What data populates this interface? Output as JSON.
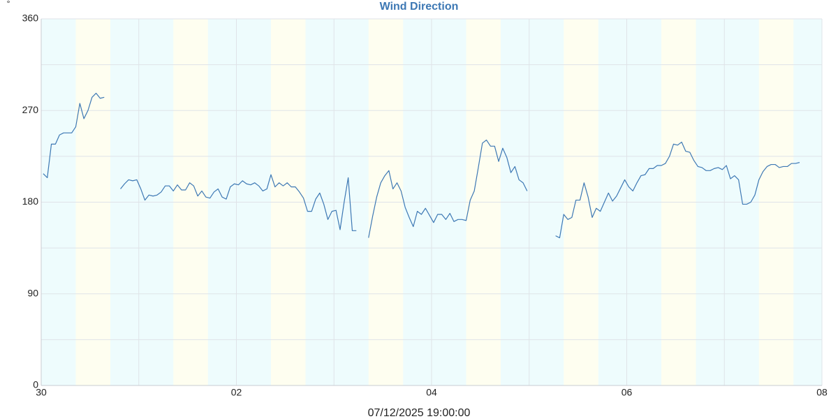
{
  "chart_data": {
    "type": "line",
    "title": "Wind Direction",
    "y_unit": "°",
    "x_label": "07/12/2025 19:00:00",
    "color": "#3d78b4",
    "background_color": "#eefcfd",
    "shaded_band_color": "#fefef0",
    "shaded_bands": [
      [
        8.5,
        17
      ],
      [
        32.5,
        41
      ],
      [
        56.5,
        65
      ],
      [
        80.5,
        89
      ],
      [
        104.5,
        113
      ],
      [
        128.5,
        137
      ],
      [
        152.5,
        161
      ],
      [
        176.5,
        185
      ]
    ],
    "grid": true,
    "xlim": [
      0,
      192
    ],
    "xticks": [
      {
        "value": 0,
        "label": "30"
      },
      {
        "value": 48,
        "label": "02"
      },
      {
        "value": 96,
        "label": "04"
      },
      {
        "value": 144,
        "label": "06"
      },
      {
        "value": 192,
        "label": "08"
      }
    ],
    "minor_xticks": [
      24,
      72,
      120,
      168
    ],
    "ylim": [
      0,
      360
    ],
    "yticks": [
      0,
      90,
      180,
      270,
      360
    ],
    "minor_yticks": [
      45,
      135,
      225,
      315
    ],
    "x": [
      0.5,
      1.5,
      2.5,
      3.5,
      4.5,
      5.5,
      6.5,
      7.5,
      8.5,
      9.5,
      10.5,
      11.5,
      12.5,
      13.5,
      14.5,
      15.5,
      16.5,
      17.5,
      18.5,
      19.5,
      20.5,
      21.5,
      22.5,
      23.5,
      24.5,
      25.5,
      26.5,
      27.5,
      28.5,
      29.5,
      30.5,
      31.5,
      32.5,
      33.5,
      34.5,
      35.5,
      36.5,
      37.5,
      38.5,
      39.5,
      40.5,
      41.5,
      42.5,
      43.5,
      44.5,
      45.5,
      46.5,
      47.5,
      48.5,
      49.5,
      50.5,
      51.5,
      52.5,
      53.5,
      54.5,
      55.5,
      56.5,
      57.5,
      58.5,
      59.5,
      60.5,
      61.5,
      62.5,
      63.5,
      64.5,
      65.5,
      66.5,
      67.5,
      68.5,
      69.5,
      70.5,
      71.5,
      72.5,
      73.5,
      74.5,
      75.5,
      76.5,
      77.5,
      78.5,
      79.5,
      80.5,
      81.5,
      82.5,
      83.5,
      84.5,
      85.5,
      86.5,
      87.5,
      88.5,
      89.5,
      90.5,
      91.5,
      92.5,
      93.5,
      94.5,
      95.5,
      96.5,
      97.5,
      98.5,
      99.5,
      100.5,
      101.5,
      102.5,
      103.5,
      104.5,
      105.5,
      106.5,
      107.5,
      108.5,
      109.5,
      110.5,
      111.5,
      112.5,
      113.5,
      114.5,
      115.5,
      116.5,
      117.5,
      118.5,
      119.5,
      120.5,
      121.5,
      122.5,
      123.5,
      124.5,
      125.5,
      126.5,
      127.5,
      128.5,
      129.5,
      130.5,
      131.5,
      132.5,
      133.5,
      134.5,
      135.5,
      136.5,
      137.5,
      138.5,
      139.5,
      140.5,
      141.5,
      142.5,
      143.5,
      144.5,
      145.5,
      146.5,
      147.5,
      148.5,
      149.5,
      150.5,
      151.5,
      152.5,
      153.5,
      154.5,
      155.5,
      156.5,
      157.5,
      158.5,
      159.5,
      160.5,
      161.5,
      162.5,
      163.5,
      164.5,
      165.5,
      166.5,
      167.5,
      168.5,
      169.5,
      170.5,
      171.5,
      172.5,
      173.5,
      174.5,
      175.5,
      176.5,
      177.5,
      178.5,
      179.5,
      180.5,
      181.5,
      182.5,
      183.5,
      184.5,
      185.5,
      186.5
    ],
    "values": [
      208,
      204,
      237,
      237,
      246,
      248,
      248,
      248,
      254,
      277,
      262,
      270,
      283,
      287,
      282,
      283,
      null,
      null,
      null,
      193,
      198,
      202,
      201,
      202,
      193,
      182,
      187,
      186,
      187,
      190,
      196,
      196,
      191,
      197,
      192,
      192,
      199,
      196,
      186,
      191,
      185,
      184,
      190,
      193,
      185,
      183,
      195,
      198,
      197,
      201,
      198,
      197,
      199,
      196,
      191,
      193,
      207,
      195,
      199,
      196,
      199,
      195,
      195,
      190,
      184,
      171,
      171,
      183,
      189,
      178,
      163,
      171,
      172,
      153,
      180,
      204,
      152,
      152,
      null,
      null,
      145,
      166,
      185,
      199,
      206,
      211,
      193,
      199,
      191,
      175,
      165,
      156,
      171,
      168,
      174,
      167,
      160,
      168,
      168,
      163,
      169,
      161,
      163,
      163,
      162,
      182,
      191,
      214,
      238,
      241,
      235,
      235,
      220,
      233,
      224,
      209,
      215,
      202,
      199,
      191,
      null,
      null,
      null,
      null,
      null,
      null,
      147,
      145,
      168,
      163,
      165,
      182,
      182,
      199,
      185,
      165,
      174,
      171,
      180,
      189,
      181,
      186,
      194,
      202,
      195,
      191,
      199,
      206,
      207,
      213,
      213,
      216,
      216,
      218,
      225,
      237,
      236,
      239,
      230,
      229,
      221,
      215,
      214,
      211,
      211,
      213,
      214,
      212,
      216,
      203,
      206,
      202,
      178,
      178,
      180,
      187,
      202,
      210,
      215,
      217,
      217,
      214,
      215,
      215,
      218,
      218,
      219
    ]
  }
}
